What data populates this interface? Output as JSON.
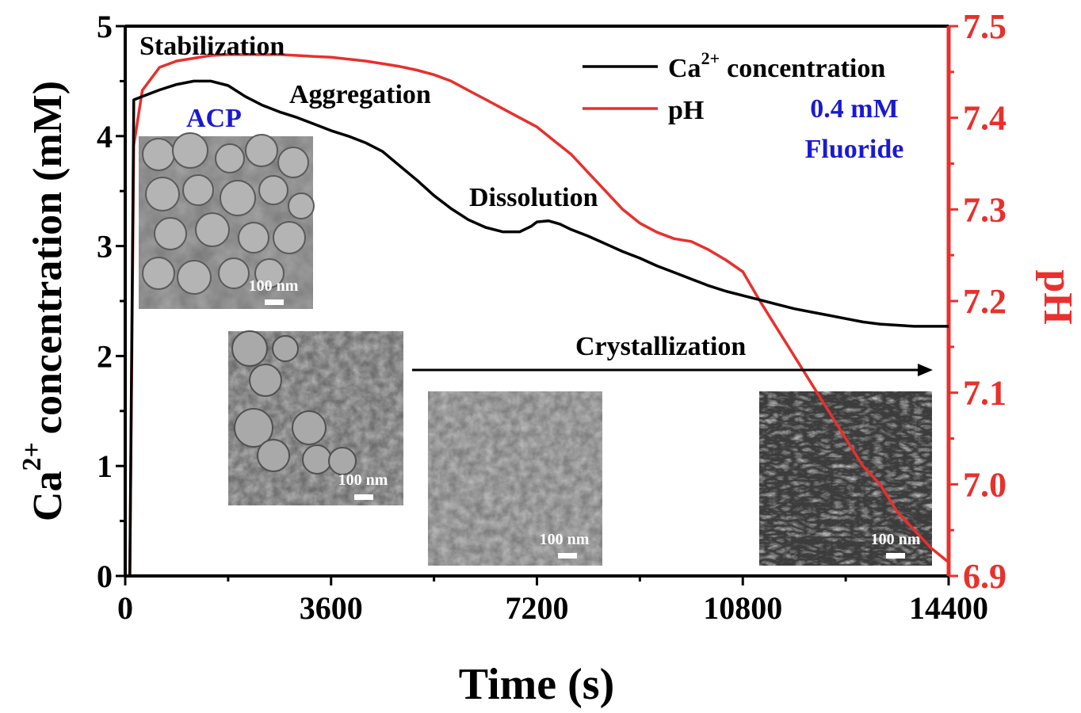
{
  "chart_data": {
    "type": "line",
    "xlabel": "Time (s)",
    "ylabel_main": "concentration (mM)",
    "ylabel_prefix": "Ca",
    "ylabel_sup": "2+",
    "y2label": "pH",
    "xlim": [
      0,
      14400
    ],
    "ylim": [
      0,
      5
    ],
    "y2lim": [
      6.9,
      7.5
    ],
    "x_ticks": [
      0,
      3600,
      7200,
      10800,
      14400
    ],
    "x_tick_labels": [
      "0",
      "3600",
      "7200",
      "10800",
      "14400"
    ],
    "y_ticks": [
      0,
      1,
      2,
      3,
      4,
      5
    ],
    "y_tick_labels": [
      "0",
      "1",
      "2",
      "3",
      "4",
      "5"
    ],
    "y2_ticks": [
      6.9,
      7.0,
      7.1,
      7.2,
      7.3,
      7.4,
      7.5
    ],
    "y2_tick_labels": [
      "6.9",
      "7.0",
      "7.1",
      "7.2",
      "7.3",
      "7.4",
      "7.5"
    ],
    "series": [
      {
        "name": "concentration",
        "name_prefix": "Ca",
        "name_sup": "2+",
        "axis": "left",
        "color": "#000000",
        "x": [
          80,
          150,
          300,
          600,
          900,
          1200,
          1500,
          1800,
          2100,
          2400,
          2700,
          3000,
          3300,
          3600,
          3900,
          4200,
          4500,
          4800,
          5100,
          5400,
          5700,
          6000,
          6300,
          6600,
          6900,
          7100,
          7200,
          7400,
          7600,
          7800,
          8100,
          8400,
          8700,
          9000,
          9300,
          9600,
          9900,
          10200,
          10500,
          10800,
          11100,
          11400,
          11700,
          12000,
          12300,
          12600,
          12900,
          13200,
          13500,
          13800,
          14100,
          14400
        ],
        "y": [
          0,
          4.33,
          4.36,
          4.42,
          4.47,
          4.5,
          4.5,
          4.46,
          4.36,
          4.28,
          4.22,
          4.17,
          4.11,
          4.05,
          4.0,
          3.94,
          3.86,
          3.73,
          3.6,
          3.46,
          3.34,
          3.24,
          3.17,
          3.13,
          3.13,
          3.18,
          3.22,
          3.23,
          3.2,
          3.15,
          3.09,
          3.02,
          2.95,
          2.89,
          2.82,
          2.76,
          2.7,
          2.64,
          2.59,
          2.55,
          2.51,
          2.47,
          2.43,
          2.4,
          2.37,
          2.34,
          2.31,
          2.29,
          2.28,
          2.27,
          2.27,
          2.27
        ]
      },
      {
        "name": "pH",
        "axis": "right",
        "color": "#e8302c",
        "x": [
          80,
          150,
          300,
          600,
          900,
          1200,
          1500,
          1800,
          2100,
          2400,
          2700,
          3000,
          3300,
          3600,
          3900,
          4200,
          4500,
          4800,
          5100,
          5400,
          5700,
          6000,
          6300,
          6600,
          6900,
          7200,
          7500,
          7800,
          8100,
          8400,
          8700,
          9000,
          9300,
          9600,
          9900,
          10200,
          10500,
          10800,
          11100,
          11400,
          11700,
          12000,
          12300,
          12600,
          12900,
          13200,
          13500,
          13800,
          14100,
          14400
        ],
        "y": [
          6.9,
          7.37,
          7.43,
          7.455,
          7.462,
          7.465,
          7.468,
          7.469,
          7.469,
          7.469,
          7.469,
          7.468,
          7.467,
          7.466,
          7.464,
          7.462,
          7.459,
          7.456,
          7.452,
          7.447,
          7.44,
          7.43,
          7.42,
          7.41,
          7.4,
          7.39,
          7.375,
          7.36,
          7.34,
          7.32,
          7.3,
          7.285,
          7.275,
          7.268,
          7.265,
          7.256,
          7.245,
          7.232,
          7.2,
          7.17,
          7.14,
          7.11,
          7.08,
          7.05,
          7.02,
          7.0,
          6.97,
          6.95,
          6.93,
          6.915
        ]
      }
    ],
    "legend_position": "top-right",
    "annotations": [
      {
        "text": "Stabilization",
        "color": "#000000"
      },
      {
        "text": "Aggregation",
        "color": "#000000"
      },
      {
        "text": "Dissolution",
        "color": "#000000"
      },
      {
        "text": "Crystallization",
        "color": "#000000"
      },
      {
        "text": "ACP",
        "color": "#1a1ad0"
      },
      {
        "text": "0.4 mM",
        "color": "#1a1ad0"
      },
      {
        "text": "Fluoride",
        "color": "#1a1ad0"
      }
    ],
    "scale_bar_label": "100 nm",
    "grid": false
  },
  "colors": {
    "ca_line": "#000000",
    "ph_line": "#e8302c",
    "right_axis": "#e8302c",
    "annotation_blue": "#1a1ad0"
  }
}
